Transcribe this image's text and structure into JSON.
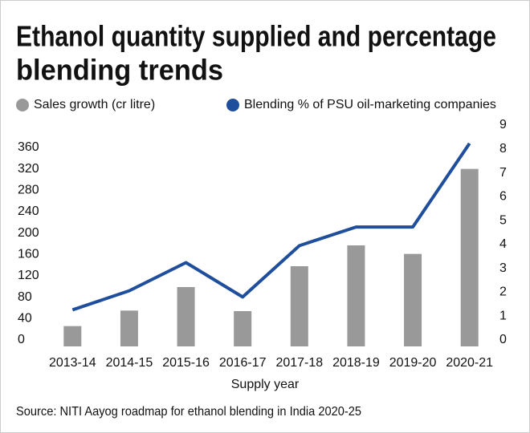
{
  "chart_data": {
    "type": "bar",
    "title": [
      "Ethanol quantity supplied and percentage",
      "blending trends"
    ],
    "x_label": "Supply year",
    "source": "Source: NITI Aayog roadmap for ethanol blending in India 2020-25",
    "categories": [
      "2013-14",
      "2014-15",
      "2015-16",
      "2016-17",
      "2017-18",
      "2018-19",
      "2019-20",
      "2020-21"
    ],
    "series": [
      {
        "name": "Sales growth (cr litre)",
        "color": "#999999",
        "values": [
          38,
          67,
          111,
          66,
          150,
          189,
          173,
          332
        ]
      },
      {
        "name": "Blending % of PSU oil-marketing companies",
        "color": "#1f4e9c",
        "type": "line",
        "axis": "y2",
        "values": [
          1.53,
          2.33,
          3.51,
          2.07,
          4.22,
          5.0,
          5.0,
          8.5
        ]
      }
    ],
    "ylim": [
      0,
      360
    ],
    "yticks": [
      0,
      40,
      80,
      120,
      160,
      200,
      240,
      280,
      320,
      360
    ],
    "y2lim": [
      0,
      9
    ],
    "y2ticks": [
      0,
      1,
      2,
      3,
      4,
      5,
      6,
      7,
      8,
      9
    ],
    "grid": false
  }
}
